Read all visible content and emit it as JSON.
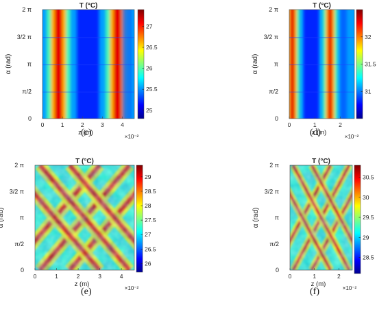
{
  "chart_data": [
    {
      "type": "heatmap",
      "panel": "c",
      "caption": "(c)",
      "title": "T (°C)",
      "xlabel": "z (m)",
      "ylabel": "α (rad)",
      "x_ticks": [
        "0",
        "1",
        "2",
        "3",
        "4"
      ],
      "x_multiplier": "×10⁻²",
      "xlim": [
        0,
        4.6
      ],
      "y_ticks": [
        "0",
        "π/2",
        "π",
        "3/2 π",
        "2 π"
      ],
      "ylim_rad": [
        0,
        6.283
      ],
      "colorbar_ticks": [
        "25",
        "25.5",
        "26",
        "26.5",
        "27"
      ],
      "clim": [
        24.8,
        27.4
      ],
      "pattern": "axial-bands",
      "bands_z": [
        0.8,
        3.75
      ],
      "band_width": 0.25,
      "gridlines": false
    },
    {
      "type": "heatmap",
      "panel": "d",
      "caption": "(d)",
      "title": "T (°C)",
      "xlabel": "z (m)",
      "ylabel": "α (rad)",
      "x_ticks": [
        "0",
        "1",
        "2"
      ],
      "x_multiplier": "×10⁻²",
      "xlim": [
        0,
        2.55
      ],
      "y_ticks": [
        "0",
        "π/2",
        "π",
        "3/2 π",
        "2 π"
      ],
      "ylim_rad": [
        0,
        6.283
      ],
      "colorbar_ticks": [
        "31",
        "31.5",
        "32"
      ],
      "clim": [
        30.5,
        32.5
      ],
      "pattern": "axial-bands",
      "bands_z": [
        0.12,
        1.6
      ],
      "band_width": 0.12,
      "gridlines": false
    },
    {
      "type": "heatmap",
      "panel": "e",
      "caption": "(e)",
      "title": "T (°C)",
      "xlabel": "z (m)",
      "ylabel": "α (rad)",
      "x_ticks": [
        "0",
        "1",
        "2",
        "3",
        "4"
      ],
      "x_multiplier": "×10⁻²",
      "xlim": [
        0,
        4.6
      ],
      "y_ticks": [
        "0",
        "π/2",
        "π",
        "3/2 π",
        "2 π"
      ],
      "ylim_rad": [
        0,
        6.283
      ],
      "colorbar_ticks": [
        "26",
        "26.5",
        "27",
        "27.5",
        "28",
        "28.5",
        "29"
      ],
      "clim": [
        25.7,
        29.4
      ],
      "pattern": "helical-bands",
      "gridlines": false
    },
    {
      "type": "heatmap",
      "panel": "f",
      "caption": "(f)",
      "title": "T (°C)",
      "xlabel": "z (m)",
      "ylabel": "α (rad)",
      "x_ticks": [
        "0",
        "1",
        "2"
      ],
      "x_multiplier": "×10⁻²",
      "xlim": [
        0,
        2.55
      ],
      "y_ticks": [
        "0",
        "π/2",
        "π",
        "3/2 π",
        "2 π"
      ],
      "ylim_rad": [
        0,
        6.283
      ],
      "colorbar_ticks": [
        "28.5",
        "29",
        "29.5",
        "30",
        "30.5"
      ],
      "clim": [
        28.1,
        30.8
      ],
      "pattern": "helical-bands",
      "gridlines": false
    }
  ]
}
